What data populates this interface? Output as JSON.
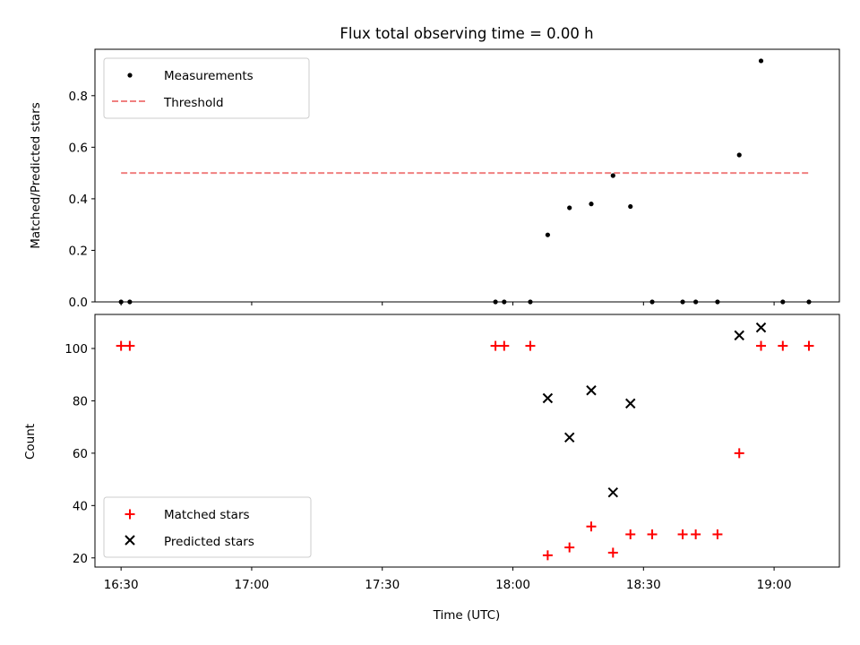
{
  "chart_data": [
    {
      "type": "scatter",
      "title": "Flux total observing time = 0.00 h",
      "xlabel": "",
      "ylabel": "Matched/Predicted stars",
      "xlim": [
        "16:24",
        "19:15"
      ],
      "ylim": [
        0,
        0.98
      ],
      "yticks": [
        "0.0",
        "0.2",
        "0.4",
        "0.6",
        "0.8"
      ],
      "legend_position": "upper-left",
      "series": [
        {
          "name": "Measurements",
          "marker": "dot",
          "color": "#000000",
          "x": [
            "16:30",
            "16:32",
            "17:56",
            "17:58",
            "18:04",
            "18:08",
            "18:13",
            "18:18",
            "18:23",
            "18:27",
            "18:32",
            "18:39",
            "18:42",
            "18:47",
            "18:52",
            "18:57",
            "19:02",
            "19:08"
          ],
          "y": [
            0.0,
            0.0,
            0.0,
            0.0,
            0.0,
            0.26,
            0.365,
            0.38,
            0.49,
            0.37,
            0.0,
            0.0,
            0.0,
            0.0,
            0.57,
            0.935,
            0.0,
            0.0
          ]
        },
        {
          "name": "Threshold",
          "marker": "dashed-line",
          "color": "#f08080",
          "x": [
            "16:30",
            "19:08"
          ],
          "y": [
            0.5,
            0.5
          ]
        }
      ]
    },
    {
      "type": "scatter",
      "title": "",
      "xlabel": "Time (UTC)",
      "ylabel": "Count",
      "xlim": [
        "16:24",
        "19:15"
      ],
      "ylim": [
        16.5,
        113
      ],
      "xticks": [
        "16:30",
        "17:00",
        "17:30",
        "18:00",
        "18:30",
        "19:00"
      ],
      "yticks": [
        "20",
        "40",
        "60",
        "80",
        "100"
      ],
      "legend_position": "lower-left",
      "series": [
        {
          "name": "Matched stars",
          "marker": "plus",
          "color": "#ff0000",
          "x": [
            "16:30",
            "16:32",
            "17:56",
            "17:58",
            "18:04",
            "18:08",
            "18:13",
            "18:18",
            "18:23",
            "18:27",
            "18:32",
            "18:39",
            "18:42",
            "18:47",
            "18:52",
            "18:57",
            "19:02",
            "19:08"
          ],
          "y": [
            101,
            101,
            101,
            101,
            101,
            21,
            24,
            32,
            22,
            29,
            29,
            29,
            29,
            29,
            60,
            101,
            101,
            101
          ]
        },
        {
          "name": "Predicted stars",
          "marker": "x",
          "color": "#000000",
          "x": [
            "18:08",
            "18:13",
            "18:18",
            "18:23",
            "18:27",
            "18:52",
            "18:57"
          ],
          "y": [
            81,
            66,
            84,
            45,
            79,
            105,
            108
          ]
        }
      ]
    }
  ]
}
